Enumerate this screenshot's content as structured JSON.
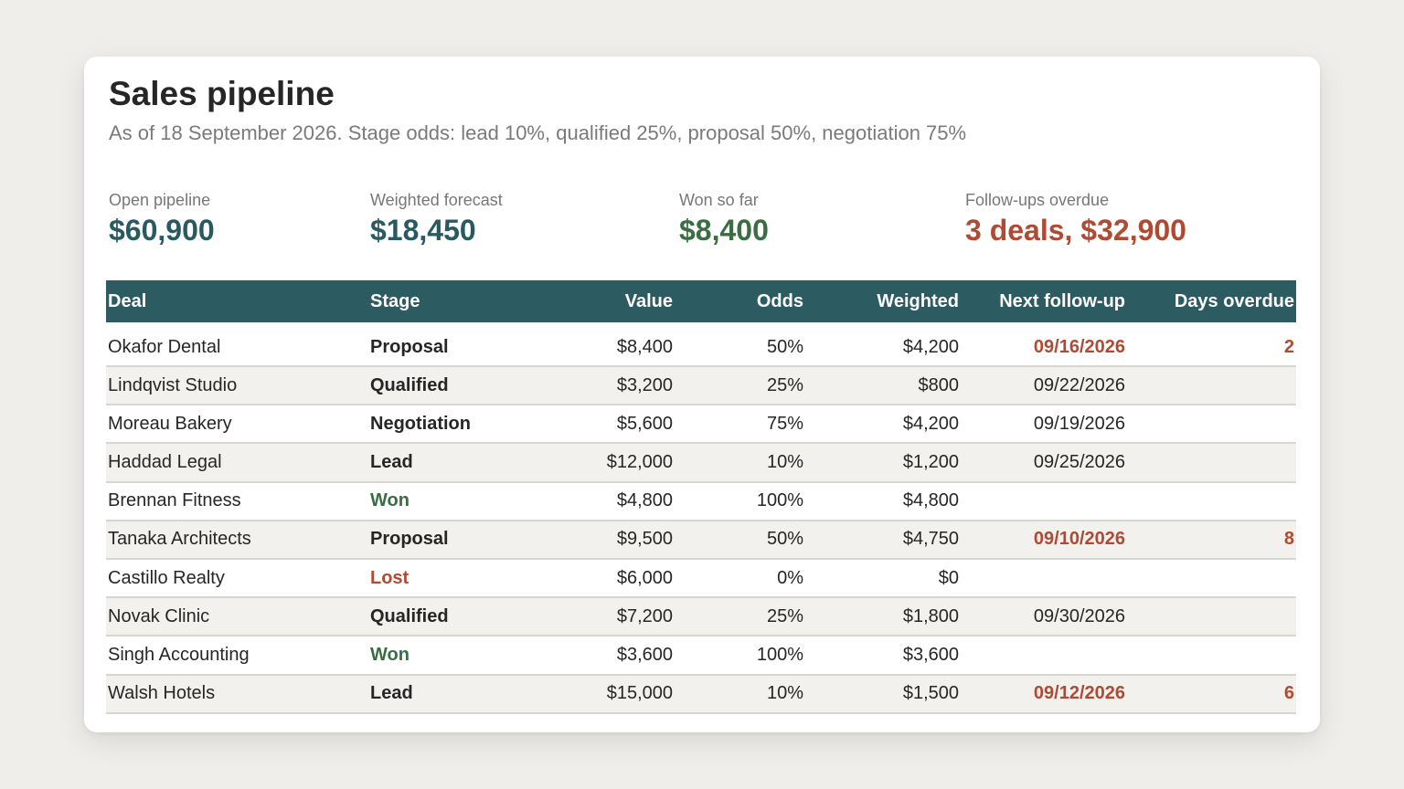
{
  "header": {
    "title": "Sales pipeline",
    "subtitle": "As of 18 September 2026. Stage odds: lead 10%, qualified 25%, proposal 50%, negotiation 75%"
  },
  "kpis": {
    "open_pipeline": {
      "label": "Open pipeline",
      "value": "$60,900"
    },
    "weighted_forecast": {
      "label": "Weighted forecast",
      "value": "$18,450"
    },
    "won_so_far": {
      "label": "Won so far",
      "value": "$8,400"
    },
    "followups_overdue": {
      "label": "Follow-ups overdue",
      "value": "3 deals, $32,900"
    }
  },
  "colors": {
    "header_bg": "#2d5b62",
    "teal": "#2a5a61",
    "green": "#3a6e42",
    "red": "#b04a33"
  },
  "table": {
    "columns": [
      "Deal",
      "Stage",
      "Value",
      "Odds",
      "Weighted",
      "Next follow-up",
      "Days overdue"
    ],
    "rows": [
      {
        "deal": "Okafor Dental",
        "stage": "Proposal",
        "value": "$8,400",
        "odds": "50%",
        "weighted": "$4,200",
        "next": "09/16/2026",
        "days": "2",
        "overdue": true
      },
      {
        "deal": "Lindqvist Studio",
        "stage": "Qualified",
        "value": "$3,200",
        "odds": "25%",
        "weighted": "$800",
        "next": "09/22/2026",
        "days": "",
        "overdue": false
      },
      {
        "deal": "Moreau Bakery",
        "stage": "Negotiation",
        "value": "$5,600",
        "odds": "75%",
        "weighted": "$4,200",
        "next": "09/19/2026",
        "days": "",
        "overdue": false
      },
      {
        "deal": "Haddad Legal",
        "stage": "Lead",
        "value": "$12,000",
        "odds": "10%",
        "weighted": "$1,200",
        "next": "09/25/2026",
        "days": "",
        "overdue": false
      },
      {
        "deal": "Brennan Fitness",
        "stage": "Won",
        "value": "$4,800",
        "odds": "100%",
        "weighted": "$4,800",
        "next": "",
        "days": "",
        "overdue": false
      },
      {
        "deal": "Tanaka Architects",
        "stage": "Proposal",
        "value": "$9,500",
        "odds": "50%",
        "weighted": "$4,750",
        "next": "09/10/2026",
        "days": "8",
        "overdue": true
      },
      {
        "deal": "Castillo Realty",
        "stage": "Lost",
        "value": "$6,000",
        "odds": "0%",
        "weighted": "$0",
        "next": "",
        "days": "",
        "overdue": false
      },
      {
        "deal": "Novak Clinic",
        "stage": "Qualified",
        "value": "$7,200",
        "odds": "25%",
        "weighted": "$1,800",
        "next": "09/30/2026",
        "days": "",
        "overdue": false
      },
      {
        "deal": "Singh Accounting",
        "stage": "Won",
        "value": "$3,600",
        "odds": "100%",
        "weighted": "$3,600",
        "next": "",
        "days": "",
        "overdue": false
      },
      {
        "deal": "Walsh Hotels",
        "stage": "Lead",
        "value": "$15,000",
        "odds": "10%",
        "weighted": "$1,500",
        "next": "09/12/2026",
        "days": "6",
        "overdue": true
      }
    ]
  }
}
